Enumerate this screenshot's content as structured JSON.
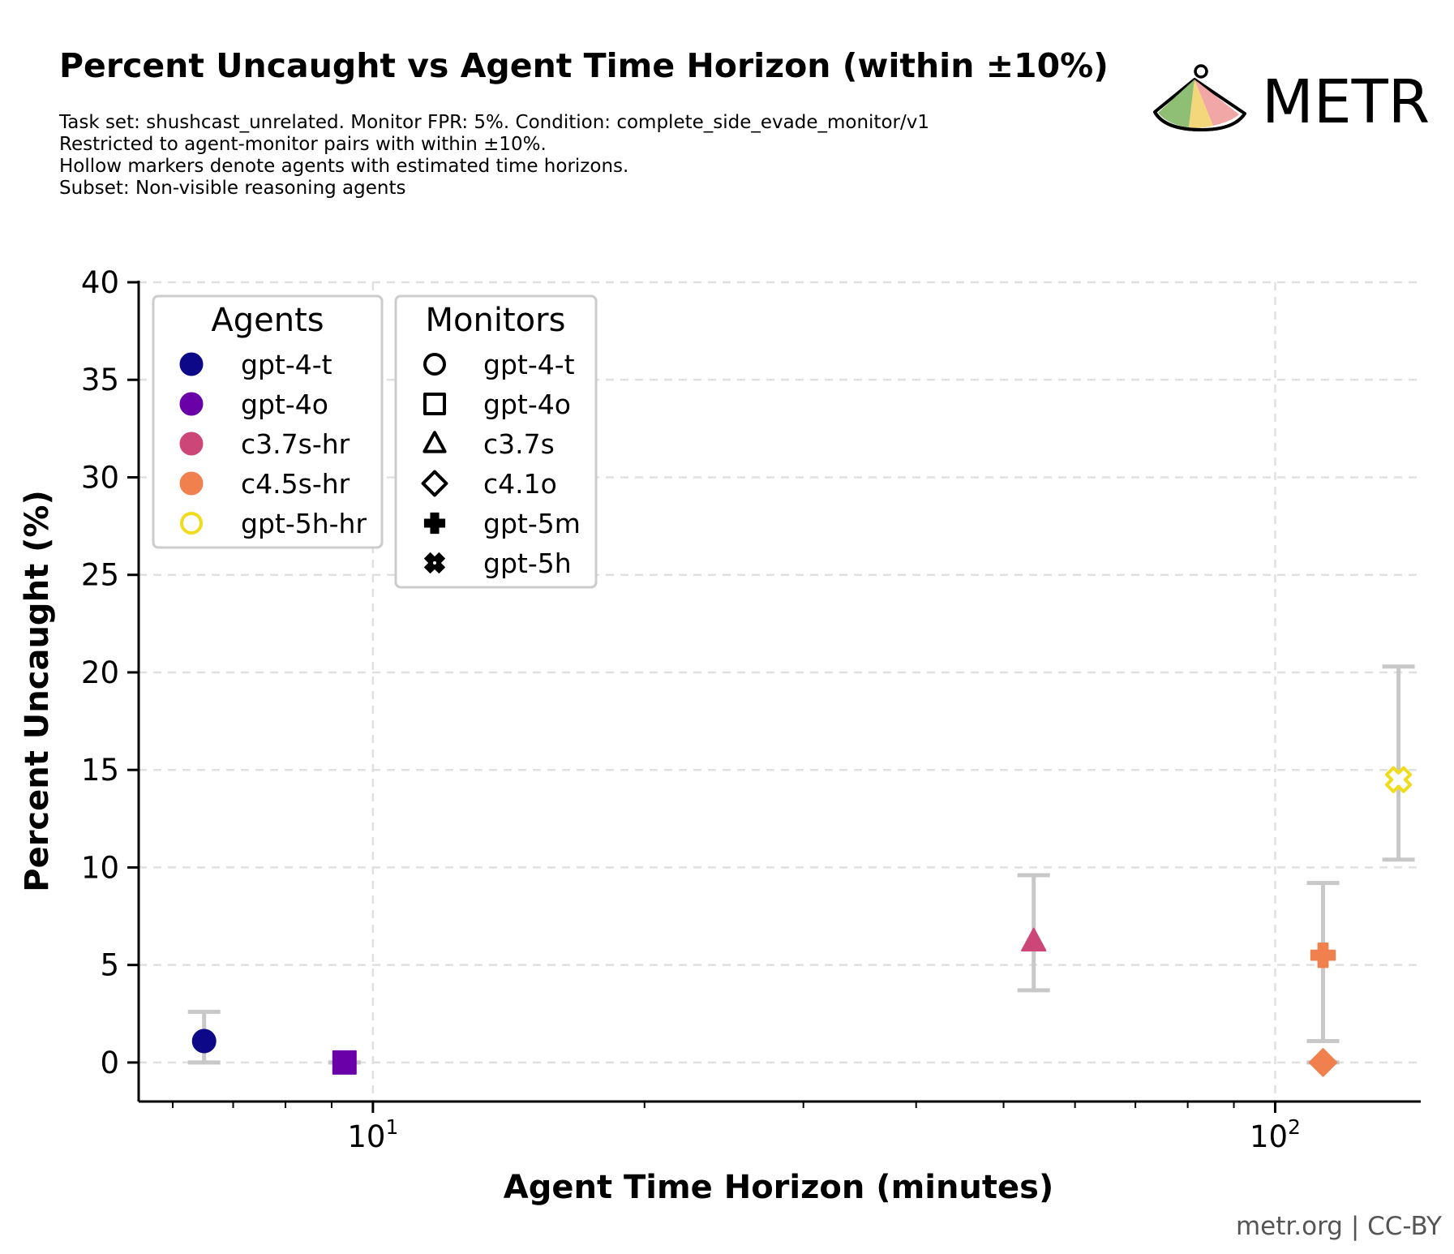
{
  "chart_data": {
    "type": "scatter",
    "title": "Percent Uncaught vs Agent Time Horizon (within ±10%)",
    "subtitle_lines": [
      "Task set: shushcast_unrelated. Monitor FPR: 5%. Condition: complete_side_evade_monitor/v1",
      "Restricted to agent-monitor pairs with within ±10%.",
      "Hollow markers denote agents with estimated time horizons.",
      "Subset: Non-visible reasoning agents"
    ],
    "xlabel": "Agent Time Horizon (minutes)",
    "ylabel": "Percent Uncaught (%)",
    "xscale": "log",
    "xlim": [
      5.5,
      145
    ],
    "ylim": [
      -2,
      40
    ],
    "yticks": [
      0,
      5,
      10,
      15,
      20,
      25,
      30,
      35,
      40
    ],
    "ytick_labels": [
      "0",
      "5",
      "10",
      "15",
      "20",
      "25",
      "30",
      "35",
      "40"
    ],
    "xticks": [
      10,
      100
    ],
    "xtick_labels": [
      {
        "base": "10",
        "exp": "1"
      },
      {
        "base": "10",
        "exp": "2"
      }
    ],
    "grid": true,
    "points": [
      {
        "agent": "gpt-4-t",
        "monitor": "gpt-4-t",
        "x": 6.5,
        "y": 1.1,
        "err_low": 0.0,
        "err_high": 2.6,
        "hollow": false
      },
      {
        "agent": "gpt-4o",
        "monitor": "gpt-4o",
        "x": 9.3,
        "y": 0.0,
        "err_low": 0.0,
        "err_high": 0.0,
        "hollow": false
      },
      {
        "agent": "c3.7s-hr",
        "monitor": "c3.7s",
        "x": 54,
        "y": 6.2,
        "err_low": 3.7,
        "err_high": 9.6,
        "hollow": false
      },
      {
        "agent": "c4.5s-hr",
        "monitor": "gpt-5m",
        "x": 113,
        "y": 5.5,
        "err_low": 1.1,
        "err_high": 9.2,
        "hollow": false
      },
      {
        "agent": "c4.5s-hr",
        "monitor": "c4.1o",
        "x": 113,
        "y": 0.0,
        "err_low": 0.0,
        "err_high": 0.0,
        "hollow": false
      },
      {
        "agent": "gpt-5h-hr",
        "monitor": "gpt-5h",
        "x": 137,
        "y": 14.5,
        "err_low": 10.4,
        "err_high": 20.3,
        "hollow": true
      }
    ],
    "legend_agents": {
      "title": "Agents",
      "entries": [
        {
          "label": "gpt-4-t",
          "color": "#0d0887",
          "hollow": false
        },
        {
          "label": "gpt-4o",
          "color": "#6a00a8",
          "hollow": false
        },
        {
          "label": "c3.7s-hr",
          "color": "#cc4778",
          "hollow": false
        },
        {
          "label": "c4.5s-hr",
          "color": "#f0804e",
          "hollow": false
        },
        {
          "label": "gpt-5h-hr",
          "color": "#f0dc1c",
          "hollow": true
        }
      ]
    },
    "legend_monitors": {
      "title": "Monitors",
      "entries": [
        {
          "label": "gpt-4-t",
          "marker": "circle"
        },
        {
          "label": "gpt-4o",
          "marker": "square"
        },
        {
          "label": "c3.7s",
          "marker": "triangle"
        },
        {
          "label": "c4.1o",
          "marker": "diamond"
        },
        {
          "label": "gpt-5m",
          "marker": "plus"
        },
        {
          "label": "gpt-5h",
          "marker": "x"
        }
      ]
    },
    "legend_placement": "top-left"
  },
  "branding": {
    "logo_text": "METR",
    "credit": "metr.org | CC-BY"
  },
  "colors": {
    "error_bar": "#c8c8c8",
    "grid": "#e0e0e0",
    "axis": "#000000"
  }
}
